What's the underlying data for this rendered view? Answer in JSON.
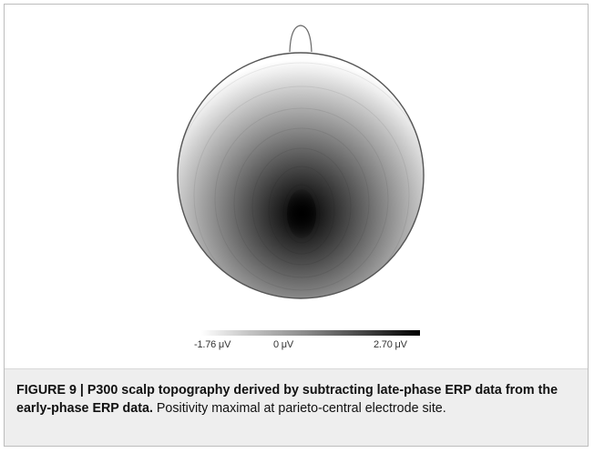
{
  "figure": {
    "colorbar": {
      "min_label": "-1.76 μV",
      "mid_label": "0 μV",
      "max_label": "2.70 μV",
      "min_value": -1.76,
      "max_value": 2.7,
      "low_color": "#ffffff",
      "high_color": "#000000"
    },
    "caption": {
      "label": "FIGURE 9 | ",
      "title": "P300 scalp topography derived by subtracting late-phase ERP data from the early-phase ERP data.",
      "body": " Positivity maximal at parieto-central electrode site."
    }
  }
}
